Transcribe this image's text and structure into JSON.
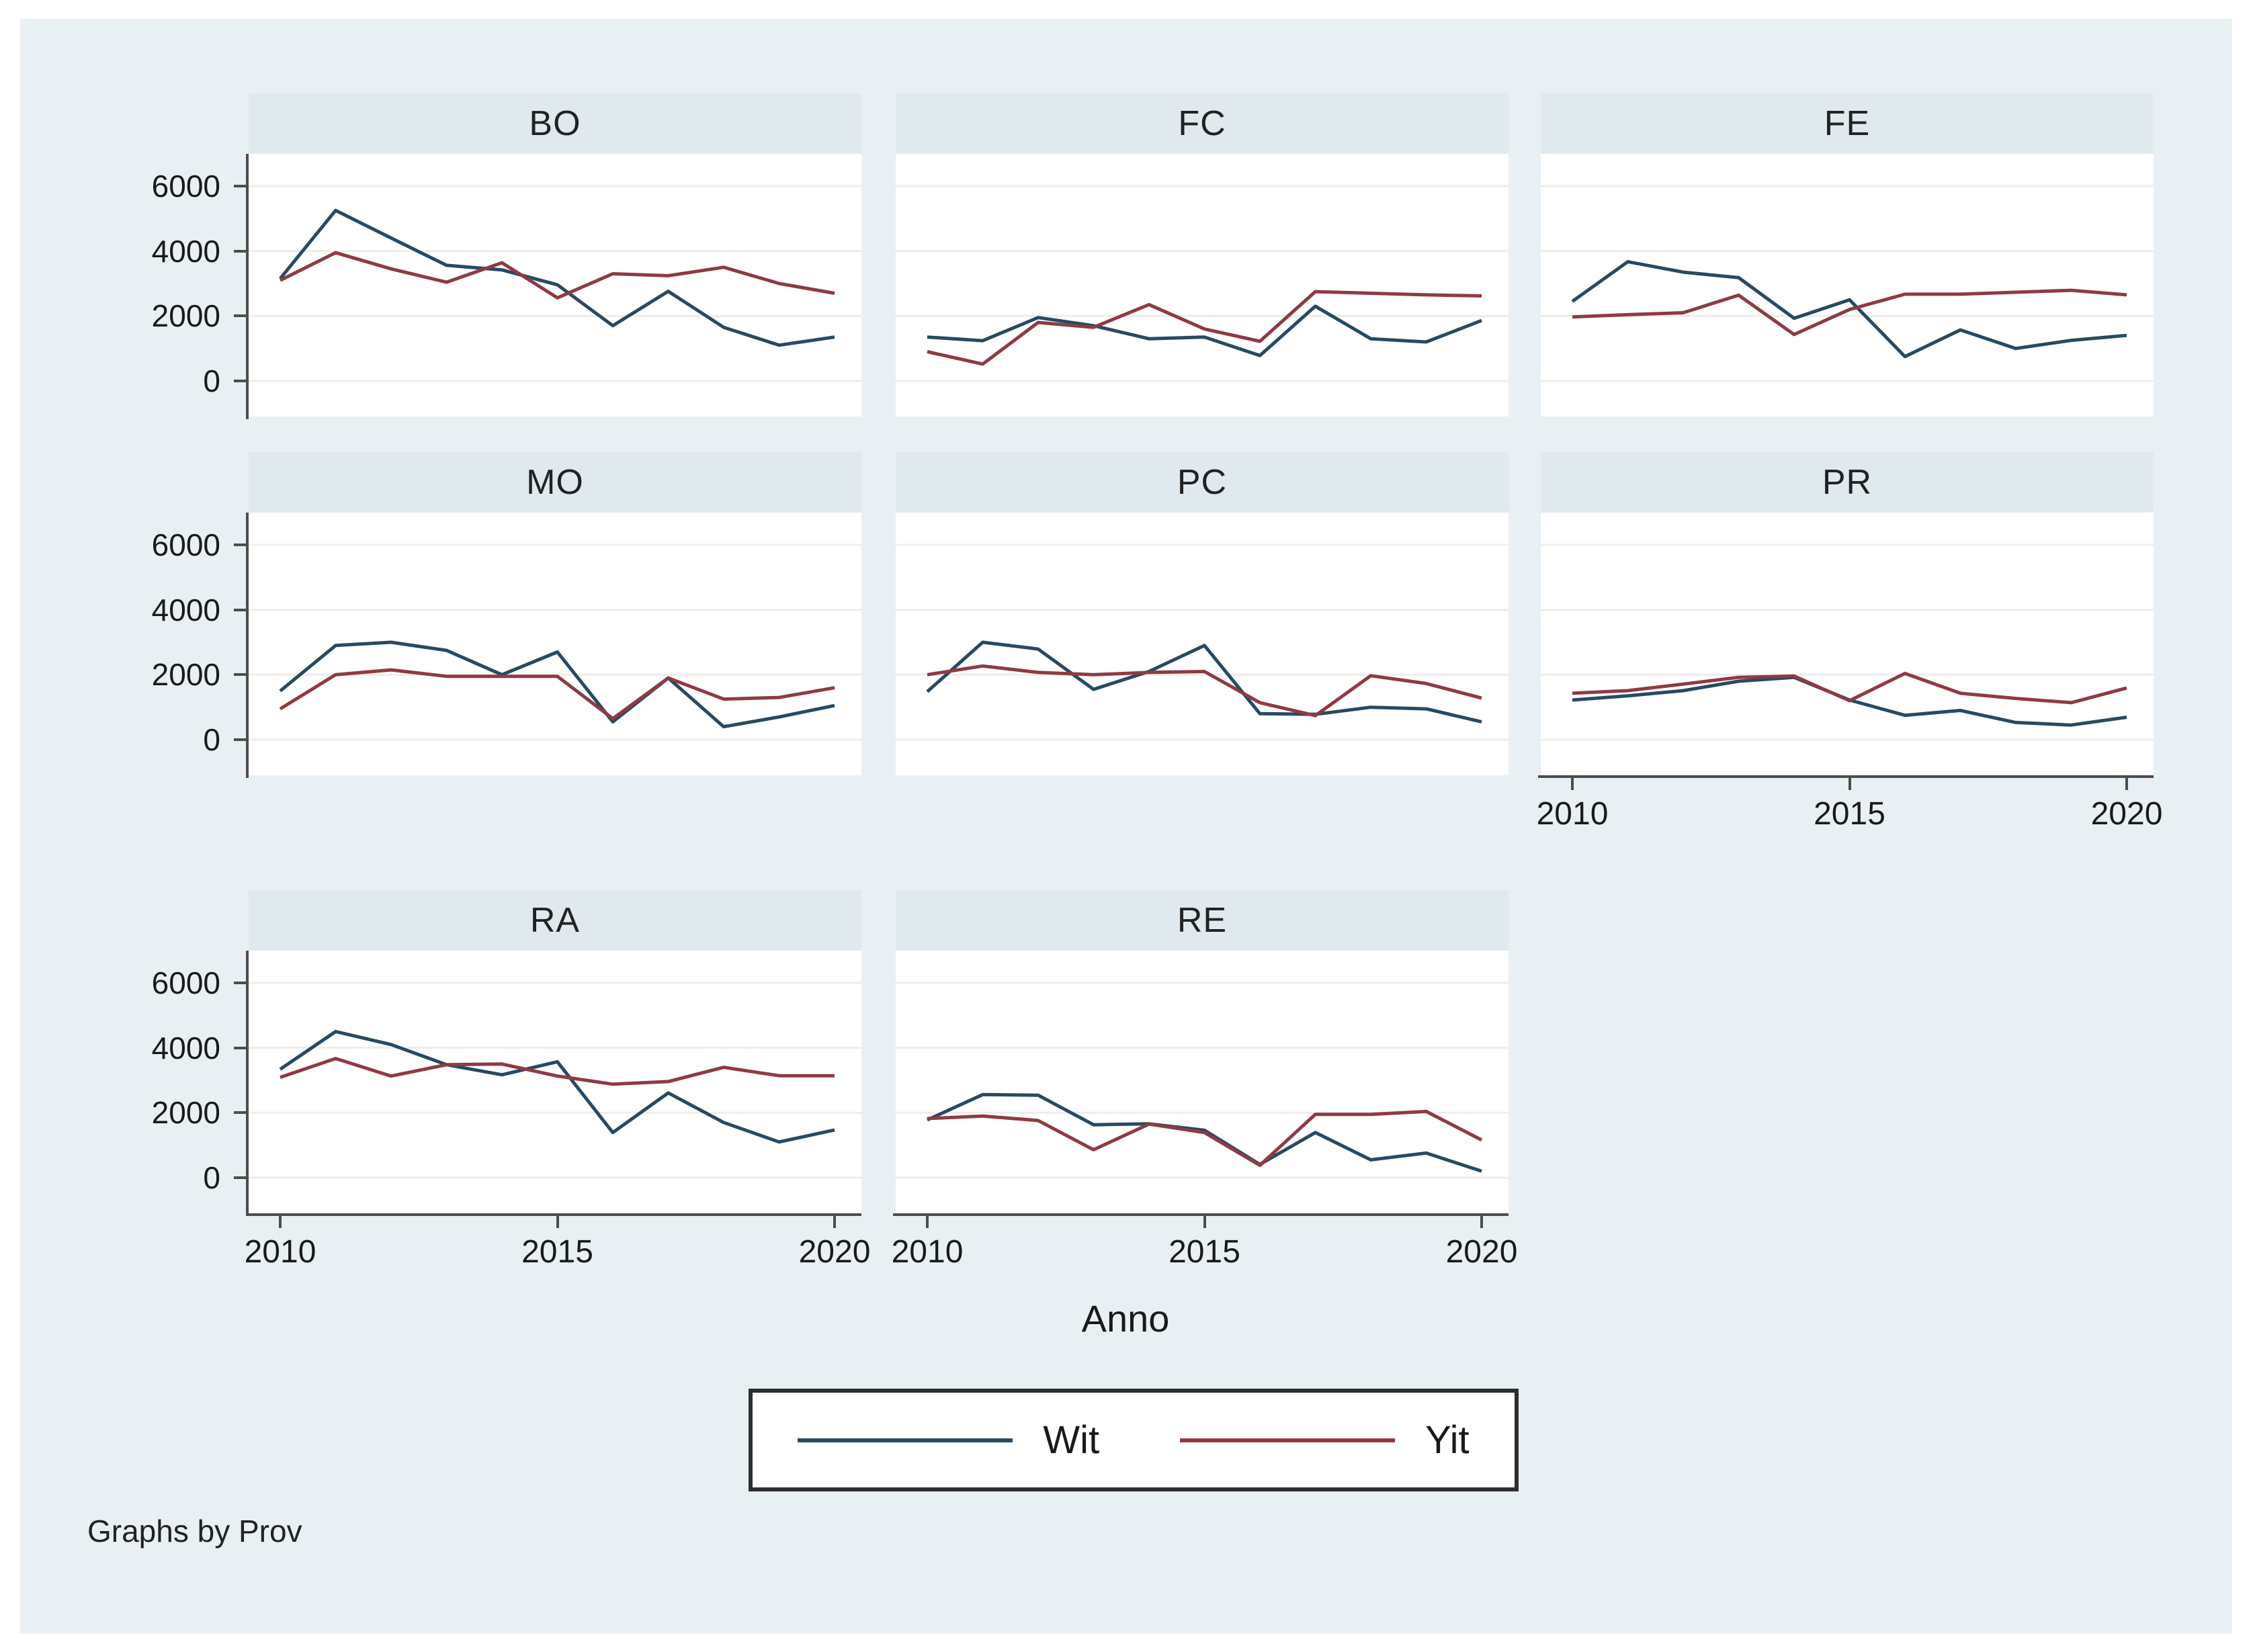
{
  "chart_data": {
    "type": "line",
    "title": "",
    "xlabel": "Anno",
    "note": "Graphs by Prov",
    "x": [
      2010,
      2011,
      2012,
      2013,
      2014,
      2015,
      2016,
      2017,
      2018,
      2019,
      2020
    ],
    "x_ticks": [
      2010,
      2015,
      2020
    ],
    "y_ticks": [
      0,
      2000,
      4000,
      6000
    ],
    "ylim": [
      -600,
      7000
    ],
    "grid": "horizontal",
    "legend_position": "bottom-center",
    "panels": [
      {
        "title": "BO",
        "row": 0,
        "col": 0,
        "y_axis": true,
        "x_axis": false,
        "series": [
          {
            "name": "Wit",
            "values": [
              3150,
              5250,
              4400,
              3560,
              3420,
              2960,
              1700,
              2760,
              1650,
              1100,
              1350
            ]
          },
          {
            "name": "Yit",
            "values": [
              3100,
              3950,
              3450,
              3040,
              3640,
              2560,
              3300,
              3240,
              3500,
              3000,
              2700
            ]
          }
        ]
      },
      {
        "title": "FC",
        "row": 0,
        "col": 1,
        "y_axis": false,
        "x_axis": false,
        "series": [
          {
            "name": "Wit",
            "values": [
              1350,
              1240,
              1950,
              1700,
              1300,
              1350,
              780,
              2300,
              1300,
              1200,
              1860
            ]
          },
          {
            "name": "Yit",
            "values": [
              900,
              520,
              1800,
              1650,
              2350,
              1600,
              1220,
              2750,
              2700,
              2650,
              2620
            ]
          }
        ]
      },
      {
        "title": "FE",
        "row": 0,
        "col": 2,
        "y_axis": false,
        "x_axis": false,
        "series": [
          {
            "name": "Wit",
            "values": [
              2450,
              3670,
              3350,
              3180,
              1930,
              2500,
              750,
              1570,
              1000,
              1250,
              1400
            ]
          },
          {
            "name": "Yit",
            "values": [
              1970,
              2040,
              2100,
              2640,
              1430,
              2200,
              2670,
              2670,
              2730,
              2790,
              2650
            ]
          }
        ]
      },
      {
        "title": "MO",
        "row": 1,
        "col": 0,
        "y_axis": true,
        "x_axis": false,
        "series": [
          {
            "name": "Wit",
            "values": [
              1500,
              2900,
              3000,
              2750,
              2000,
              2700,
              550,
              1900,
              400,
              700,
              1050
            ]
          },
          {
            "name": "Yit",
            "values": [
              950,
              2000,
              2150,
              1950,
              1950,
              1950,
              650,
              1900,
              1250,
              1300,
              1600
            ]
          }
        ]
      },
      {
        "title": "PC",
        "row": 1,
        "col": 1,
        "y_axis": false,
        "x_axis": false,
        "series": [
          {
            "name": "Wit",
            "values": [
              1480,
              3000,
              2790,
              1550,
              2100,
              2900,
              800,
              780,
              1000,
              950,
              550
            ]
          },
          {
            "name": "Yit",
            "values": [
              2000,
              2270,
              2070,
              2000,
              2070,
              2100,
              1140,
              740,
              1970,
              1730,
              1280
            ]
          }
        ]
      },
      {
        "title": "PR",
        "row": 1,
        "col": 2,
        "y_axis": false,
        "x_axis": true,
        "series": [
          {
            "name": "Wit",
            "values": [
              1220,
              1350,
              1510,
              1800,
              1920,
              1220,
              750,
              900,
              530,
              450,
              690
            ]
          },
          {
            "name": "Yit",
            "values": [
              1430,
              1510,
              1710,
              1920,
              1960,
              1200,
              2040,
              1430,
              1270,
              1140,
              1590
            ]
          }
        ]
      },
      {
        "title": "RA",
        "row": 2,
        "col": 0,
        "y_axis": true,
        "x_axis": true,
        "series": [
          {
            "name": "Wit",
            "values": [
              3340,
              4500,
              4100,
              3480,
              3170,
              3570,
              1390,
              2610,
              1700,
              1100,
              1470
            ]
          },
          {
            "name": "Yit",
            "values": [
              3090,
              3670,
              3130,
              3480,
              3500,
              3130,
              2880,
              2960,
              3400,
              3140,
              3140
            ]
          }
        ]
      },
      {
        "title": "RE",
        "row": 2,
        "col": 1,
        "y_axis": false,
        "x_axis": true,
        "series": [
          {
            "name": "Wit",
            "values": [
              1780,
              2560,
              2540,
              1630,
              1660,
              1460,
              410,
              1390,
              550,
              760,
              200
            ]
          },
          {
            "name": "Yit",
            "values": [
              1820,
              1900,
              1760,
              860,
              1650,
              1390,
              380,
              1950,
              1950,
              2040,
              1160
            ]
          }
        ]
      }
    ],
    "legend": {
      "items": [
        {
          "label": "Wit",
          "color": "#274a63"
        },
        {
          "label": "Yit",
          "color": "#8f3a42"
        }
      ]
    }
  },
  "colors": {
    "background": "#e9f0f3",
    "panel_header": "#dfe9ee",
    "plot_background": "#ffffff",
    "gridline": "#f1ecec",
    "axis": "#4d4d4d",
    "wit_line": "#274a63",
    "yit_line": "#8f3a42",
    "legend_border": "#2e2e2e",
    "text": "#1a1a1a"
  }
}
